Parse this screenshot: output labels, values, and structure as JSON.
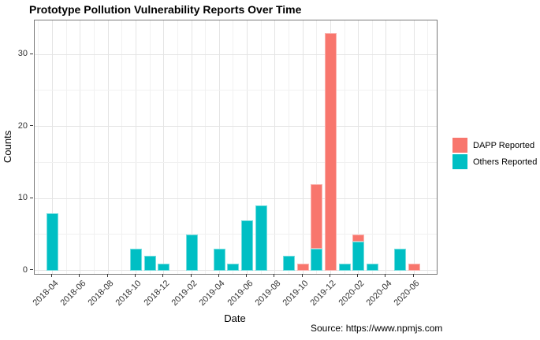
{
  "source_note": "Source: https://www.npmjs.com",
  "chart_data": {
    "type": "bar",
    "stacked": true,
    "title": "Prototype Pollution Vulnerability Reports Over Time",
    "xlabel": "Date",
    "ylabel": "Counts",
    "ylim": [
      0,
      35
    ],
    "yticks": [
      0,
      10,
      20,
      30
    ],
    "yticks_minor": [
      5,
      15,
      25
    ],
    "grid": true,
    "legend_position": "right",
    "categories": [
      "2018-04",
      "2018-05",
      "2018-06",
      "2018-07",
      "2018-08",
      "2018-09",
      "2018-10",
      "2018-11",
      "2018-12",
      "2019-01",
      "2019-02",
      "2019-03",
      "2019-04",
      "2019-05",
      "2019-06",
      "2019-07",
      "2019-08",
      "2019-09",
      "2019-10",
      "2019-11",
      "2019-12",
      "2020-01",
      "2020-02",
      "2020-03",
      "2020-04",
      "2020-05",
      "2020-06"
    ],
    "xtick_labels": [
      "2018-04",
      "2018-06",
      "2018-08",
      "2018-10",
      "2018-12",
      "2019-02",
      "2019-04",
      "2019-06",
      "2019-08",
      "2019-10",
      "2019-12",
      "2020-02",
      "2020-04",
      "2020-06"
    ],
    "series": [
      {
        "name": "DAPP Reported",
        "color": "#F8766D",
        "values": [
          0,
          0,
          0,
          0,
          0,
          0,
          0,
          0,
          0,
          0,
          0,
          0,
          0,
          0,
          0,
          0,
          0,
          0,
          1,
          9,
          33,
          0,
          1,
          0,
          0,
          0,
          1
        ]
      },
      {
        "name": "Others Reported",
        "color": "#00BFC4",
        "values": [
          8,
          0,
          0,
          0,
          0,
          0,
          3,
          2,
          1,
          0,
          5,
          0,
          3,
          1,
          7,
          9,
          0,
          2,
          0,
          3,
          0,
          1,
          4,
          1,
          0,
          3,
          0
        ]
      }
    ]
  }
}
